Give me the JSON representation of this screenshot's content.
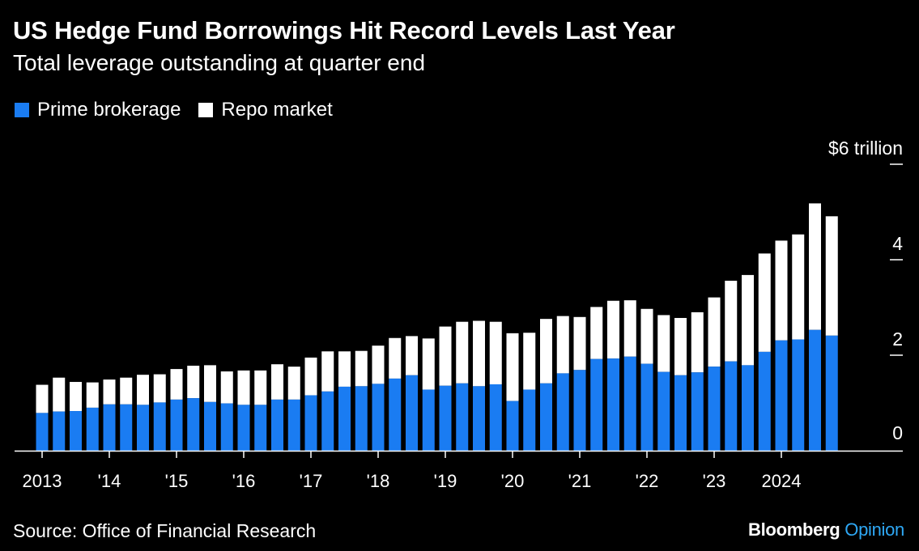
{
  "title": "US Hedge Fund Borrowings Hit Record Levels Last Year",
  "subtitle": "Total leverage outstanding at quarter end",
  "source": "Source: Office of Financial Research",
  "brand": {
    "name": "Bloomberg",
    "suffix": "Opinion"
  },
  "colors": {
    "prime": "#1a7cf2",
    "repo": "#ffffff",
    "background": "#000000",
    "brand_accent": "#2ea8f5"
  },
  "chart_data": {
    "type": "bar",
    "stacked": true,
    "title": "US Hedge Fund Borrowings Hit Record Levels Last Year",
    "subtitle": "Total leverage outstanding at quarter end",
    "ylabel": "",
    "ylim": [
      0,
      6
    ],
    "y_ticks": [
      {
        "value": 6,
        "label": "$6 trillion"
      },
      {
        "value": 4,
        "label": "4"
      },
      {
        "value": 2,
        "label": "2"
      },
      {
        "value": 0,
        "label": "0"
      }
    ],
    "x_ticks": [
      {
        "index": 0,
        "label": "2013"
      },
      {
        "index": 4,
        "label": "'14"
      },
      {
        "index": 8,
        "label": "'15"
      },
      {
        "index": 12,
        "label": "'16"
      },
      {
        "index": 16,
        "label": "'17"
      },
      {
        "index": 20,
        "label": "'18"
      },
      {
        "index": 24,
        "label": "'19"
      },
      {
        "index": 28,
        "label": "'20"
      },
      {
        "index": 32,
        "label": "'21"
      },
      {
        "index": 36,
        "label": "'22"
      },
      {
        "index": 40,
        "label": "'23"
      },
      {
        "index": 44,
        "label": "2024"
      }
    ],
    "legend_position": "top-left",
    "grid": false,
    "series": [
      {
        "name": "Prime brokerage",
        "color": "#1a7cf2",
        "values": [
          0.79,
          0.82,
          0.83,
          0.9,
          0.97,
          0.97,
          0.96,
          1.01,
          1.07,
          1.1,
          1.02,
          0.99,
          0.96,
          0.96,
          1.07,
          1.07,
          1.16,
          1.24,
          1.34,
          1.35,
          1.4,
          1.51,
          1.58,
          1.28,
          1.36,
          1.41,
          1.35,
          1.39,
          1.04,
          1.28,
          1.41,
          1.62,
          1.69,
          1.92,
          1.93,
          1.97,
          1.82,
          1.65,
          1.58,
          1.64,
          1.76,
          1.87,
          1.79,
          2.07,
          2.31,
          2.33,
          2.53,
          2.41
        ]
      },
      {
        "name": "Repo market",
        "color": "#ffffff",
        "values": [
          0.59,
          0.71,
          0.61,
          0.53,
          0.52,
          0.56,
          0.63,
          0.59,
          0.64,
          0.68,
          0.77,
          0.67,
          0.72,
          0.72,
          0.74,
          0.69,
          0.79,
          0.84,
          0.74,
          0.74,
          0.8,
          0.85,
          0.82,
          1.07,
          1.24,
          1.29,
          1.37,
          1.31,
          1.42,
          1.19,
          1.35,
          1.2,
          1.11,
          1.09,
          1.21,
          1.18,
          1.15,
          1.19,
          1.2,
          1.26,
          1.45,
          1.69,
          1.89,
          2.06,
          2.09,
          2.2,
          2.65,
          2.5
        ]
      }
    ]
  }
}
